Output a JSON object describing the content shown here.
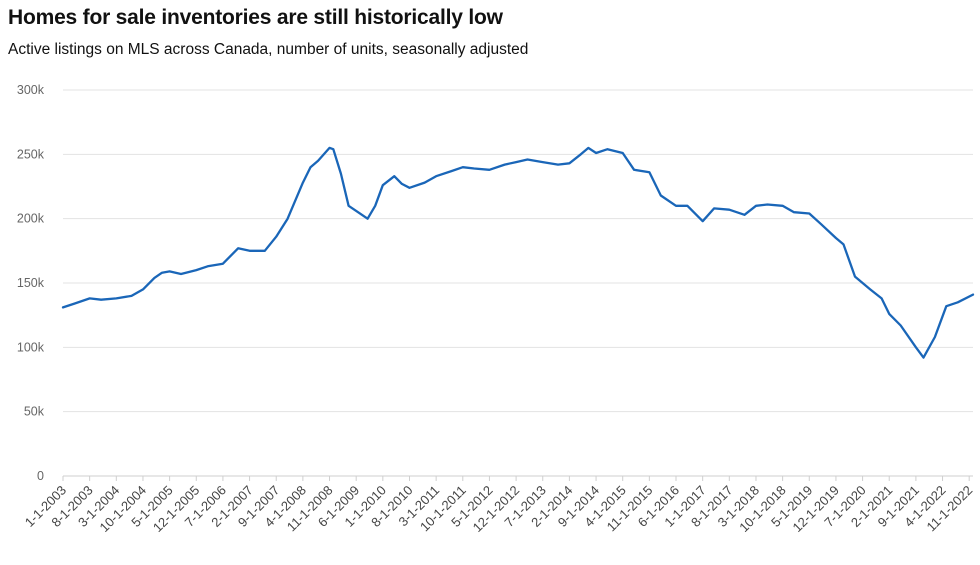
{
  "chart_data": {
    "type": "line",
    "title": "Homes for sale inventories are still historically low",
    "subtitle": "Active listings on MLS across Canada, number of units, seasonally adjusted",
    "xlabel": "",
    "ylabel": "",
    "ylim": [
      0,
      300000
    ],
    "y_ticks": [
      0,
      50000,
      100000,
      150000,
      200000,
      250000,
      300000
    ],
    "y_tick_labels": [
      "0",
      "50k",
      "100k",
      "150k",
      "200k",
      "250k",
      "300k"
    ],
    "x_tick_labels": [
      "1-1-2003",
      "8-1-2003",
      "3-1-2004",
      "10-1-2004",
      "5-1-2005",
      "12-1-2005",
      "7-1-2006",
      "2-1-2007",
      "9-1-2007",
      "4-1-2008",
      "11-1-2008",
      "6-1-2009",
      "1-1-2010",
      "8-1-2010",
      "3-1-2011",
      "10-1-2011",
      "5-1-2012",
      "12-1-2012",
      "7-1-2013",
      "2-1-2014",
      "9-1-2014",
      "4-1-2015",
      "11-1-2015",
      "6-1-2016",
      "1-1-2017",
      "8-1-2017",
      "3-1-2018",
      "10-1-2018",
      "5-1-2019",
      "12-1-2019",
      "7-1-2020",
      "2-1-2021",
      "9-1-2021",
      "4-1-2022",
      "11-1-2022"
    ],
    "grid": true,
    "legend": "none",
    "colors": {
      "line": "#1a66b8"
    },
    "series": [
      {
        "x": [
          "1-1-2003",
          "4-1-2003",
          "8-1-2003",
          "11-1-2003",
          "3-1-2004",
          "7-1-2004",
          "10-1-2004",
          "1-1-2005",
          "3-1-2005",
          "5-1-2005",
          "8-1-2005",
          "12-1-2005",
          "3-1-2006",
          "7-1-2006",
          "11-1-2006",
          "2-1-2007",
          "6-1-2007",
          "9-1-2007",
          "12-1-2007",
          "4-1-2008",
          "6-1-2008",
          "8-1-2008",
          "11-1-2008",
          "12-1-2008",
          "2-1-2009",
          "4-1-2009",
          "6-1-2009",
          "9-1-2009",
          "11-1-2009",
          "1-1-2010",
          "4-1-2010",
          "6-1-2010",
          "8-1-2010",
          "12-1-2010",
          "3-1-2011",
          "7-1-2011",
          "10-1-2011",
          "1-1-2012",
          "5-1-2012",
          "9-1-2012",
          "12-1-2012",
          "3-1-2013",
          "7-1-2013",
          "11-1-2013",
          "2-1-2014",
          "5-1-2014",
          "7-1-2014",
          "9-1-2014",
          "12-1-2014",
          "4-1-2015",
          "7-1-2015",
          "11-1-2015",
          "2-1-2016",
          "6-1-2016",
          "9-1-2016",
          "1-1-2017",
          "4-1-2017",
          "8-1-2017",
          "12-1-2017",
          "3-1-2018",
          "6-1-2018",
          "10-1-2018",
          "1-1-2019",
          "5-1-2019",
          "8-1-2019",
          "12-1-2019",
          "2-1-2020",
          "5-1-2020",
          "7-1-2020",
          "9-1-2020",
          "12-1-2020",
          "2-1-2021",
          "5-1-2021",
          "9-1-2021",
          "11-1-2021",
          "2-1-2022",
          "5-1-2022",
          "8-1-2022",
          "12-1-2022"
        ],
        "values": [
          131000,
          134000,
          138000,
          137000,
          138000,
          140000,
          145000,
          154000,
          158000,
          159000,
          157000,
          160000,
          163000,
          165000,
          177000,
          175000,
          175000,
          186000,
          200000,
          228000,
          240000,
          245000,
          255000,
          254000,
          235000,
          210000,
          206000,
          200000,
          210000,
          226000,
          233000,
          227000,
          224000,
          228000,
          233000,
          237000,
          240000,
          239000,
          238000,
          242000,
          244000,
          246000,
          244000,
          242000,
          243000,
          250000,
          255000,
          251000,
          254000,
          251000,
          238000,
          236000,
          218000,
          210000,
          210000,
          198000,
          208000,
          207000,
          203000,
          210000,
          211000,
          210000,
          205000,
          204000,
          196000,
          185000,
          180000,
          155000,
          150000,
          145000,
          138000,
          126000,
          117000,
          100000,
          92000,
          108000,
          132000,
          135000,
          141000
        ]
      }
    ]
  }
}
